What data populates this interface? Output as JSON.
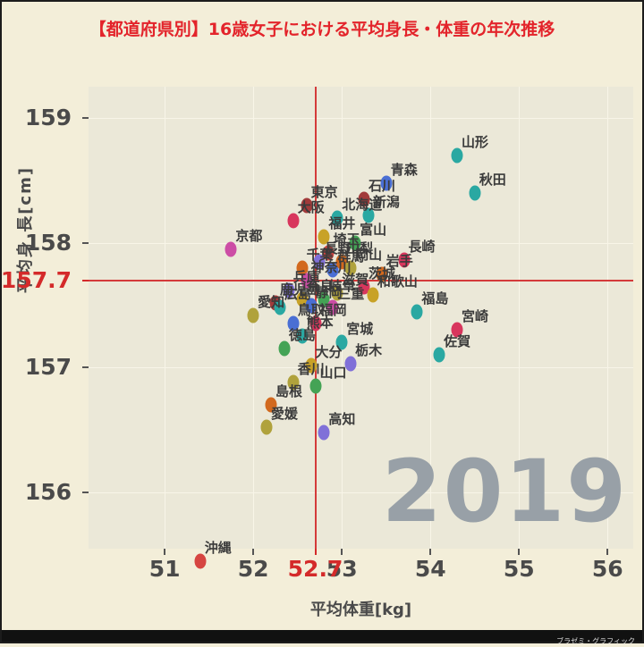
{
  "title": "【都道府県別】16歳女子における平均身長・体重の年次推移",
  "year_watermark": "2019",
  "credit": "ブラゼミ・グラフィック",
  "colors": {
    "title": "#e3242b",
    "highlight": "#d42a2a",
    "background_outer": "#f3eed9",
    "background_plot": "#ebe8d8",
    "watermark": "#98a0a7"
  },
  "chart_data": {
    "type": "scatter",
    "title": "【都道府県別】16歳女子における平均身長・体重の年次推移",
    "xlabel": "平均体重[kg]",
    "ylabel": "平均身 長[cm]",
    "xlim": [
      50.14,
      56.29
    ],
    "ylim": [
      155.55,
      159.25
    ],
    "xticks": [
      51,
      52,
      53,
      54,
      55,
      56
    ],
    "yticks": [
      156,
      157,
      158,
      159
    ],
    "grid": true,
    "highlight": {
      "x": 52.7,
      "y": 157.7,
      "color": "#d42a2a"
    },
    "year": "2019",
    "points": [
      {
        "name": "沖縄",
        "x": 51.4,
        "y": 155.45,
        "color": "#d64541"
      },
      {
        "name": "京都",
        "x": 51.75,
        "y": 157.95,
        "color": "#cc4da5"
      },
      {
        "name": "愛媛",
        "x": 52.15,
        "y": 156.52,
        "color": "#b0a23c"
      },
      {
        "name": "島根",
        "x": 52.2,
        "y": 156.7,
        "color": "#d2691e"
      },
      {
        "name": "愛知",
        "x": 52.0,
        "y": 157.42,
        "color": "#b0a23c"
      },
      {
        "name": "鹿児島",
        "x": 52.25,
        "y": 157.52,
        "color": "#a13a3a"
      },
      {
        "name": "広島",
        "x": 52.3,
        "y": 157.48,
        "color": "#2aa8a2"
      },
      {
        "name": "兵庫",
        "x": 52.4,
        "y": 157.62,
        "color": "#8070d8"
      },
      {
        "name": "徳島",
        "x": 52.35,
        "y": 157.15,
        "color": "#44a355"
      },
      {
        "name": "香川",
        "x": 52.45,
        "y": 156.88,
        "color": "#b0a23c"
      },
      {
        "name": "大阪",
        "x": 52.45,
        "y": 158.18,
        "color": "#d8365d"
      },
      {
        "name": "奈良",
        "x": 52.55,
        "y": 157.55,
        "color": "#c8a227"
      },
      {
        "name": "千葉",
        "x": 52.55,
        "y": 157.8,
        "color": "#d2691e"
      },
      {
        "name": "神奈川",
        "x": 52.6,
        "y": 157.7,
        "color": "#cc4da5"
      },
      {
        "name": "東京",
        "x": 52.6,
        "y": 158.3,
        "color": "#a13a3a"
      },
      {
        "name": "熊本",
        "x": 52.55,
        "y": 157.25,
        "color": "#2aa8a2"
      },
      {
        "name": "大分",
        "x": 52.65,
        "y": 157.02,
        "color": "#c8a227"
      },
      {
        "name": "静岡",
        "x": 52.65,
        "y": 157.5,
        "color": "#4a6fd4"
      },
      {
        "name": "山口",
        "x": 52.7,
        "y": 156.85,
        "color": "#44a355"
      },
      {
        "name": "福岡",
        "x": 52.7,
        "y": 157.35,
        "color": "#d8365d"
      },
      {
        "name": "長野",
        "x": 52.75,
        "y": 157.85,
        "color": "#8070d8"
      },
      {
        "name": "岐阜",
        "x": 52.8,
        "y": 157.55,
        "color": "#44a355"
      },
      {
        "name": "福井",
        "x": 52.8,
        "y": 158.05,
        "color": "#c8a227"
      },
      {
        "name": "高知",
        "x": 52.8,
        "y": 156.48,
        "color": "#8070d8"
      },
      {
        "name": "埼玉",
        "x": 52.85,
        "y": 157.92,
        "color": "#d64541"
      },
      {
        "name": "群馬",
        "x": 52.9,
        "y": 157.78,
        "color": "#4a6fd4"
      },
      {
        "name": "三重",
        "x": 52.9,
        "y": 157.48,
        "color": "#cc4da5"
      },
      {
        "name": "北海道",
        "x": 52.95,
        "y": 158.2,
        "color": "#2aa8a2"
      },
      {
        "name": "宮城",
        "x": 53.0,
        "y": 157.2,
        "color": "#2aa8a2"
      },
      {
        "name": "山梨",
        "x": 53.0,
        "y": 157.85,
        "color": "#d2691e"
      },
      {
        "name": "滋賀",
        "x": 52.95,
        "y": 157.6,
        "color": "#b0a23c"
      },
      {
        "name": "栃木",
        "x": 53.1,
        "y": 157.03,
        "color": "#8070d8"
      },
      {
        "name": "岡山",
        "x": 53.1,
        "y": 157.8,
        "color": "#b0a23c"
      },
      {
        "name": "富山",
        "x": 53.15,
        "y": 158.0,
        "color": "#44a355"
      },
      {
        "name": "鳥取",
        "x": 52.45,
        "y": 157.35,
        "color": "#4a6fd4"
      },
      {
        "name": "茨城",
        "x": 53.25,
        "y": 157.65,
        "color": "#d8365d"
      },
      {
        "name": "石川",
        "x": 53.25,
        "y": 158.35,
        "color": "#a13a3a"
      },
      {
        "name": "新潟",
        "x": 53.3,
        "y": 158.22,
        "color": "#2aa8a2"
      },
      {
        "name": "和歌山",
        "x": 53.35,
        "y": 157.58,
        "color": "#c8a227"
      },
      {
        "name": "岩手",
        "x": 53.45,
        "y": 157.75,
        "color": "#d2691e"
      },
      {
        "name": "青森",
        "x": 53.5,
        "y": 158.48,
        "color": "#4a6fd4"
      },
      {
        "name": "山形",
        "x": 54.3,
        "y": 158.7,
        "color": "#2aa8a2"
      },
      {
        "name": "秋田",
        "x": 54.5,
        "y": 158.4,
        "color": "#2aa8a2"
      },
      {
        "name": "長崎",
        "x": 53.7,
        "y": 157.86,
        "color": "#d8365d"
      },
      {
        "name": "福島",
        "x": 53.85,
        "y": 157.45,
        "color": "#2aa8a2"
      },
      {
        "name": "佐賀",
        "x": 54.1,
        "y": 157.1,
        "color": "#2aa8a2"
      },
      {
        "name": "宮崎",
        "x": 54.3,
        "y": 157.3,
        "color": "#d8365d"
      }
    ]
  }
}
